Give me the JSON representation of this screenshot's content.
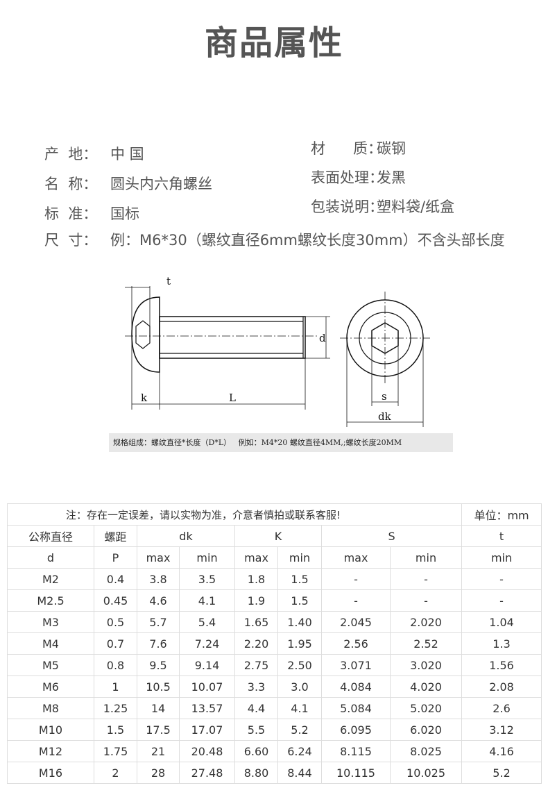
{
  "header": {
    "title": "商品属性"
  },
  "attributes": {
    "left": [
      {
        "label": "产  地：",
        "value": "中 国"
      },
      {
        "label": "名  称：",
        "value": "圆头内六角螺丝"
      },
      {
        "label": "标  准：",
        "value": "国标"
      }
    ],
    "right": [
      {
        "label": "材      质：",
        "value": "碳钢"
      },
      {
        "label": "表面处理：",
        "value": "发黑"
      },
      {
        "label": "包装说明：",
        "value": "塑料袋/纸盒"
      }
    ],
    "size": {
      "label": "尺  寸：",
      "value": "例：M6*30（螺纹直径6mm螺纹长度30mm）不含头部长度"
    }
  },
  "diagram": {
    "labels": {
      "t": "t",
      "d": "d",
      "k": "k",
      "L": "L",
      "s": "s",
      "dk": "dk"
    },
    "caption": "规格组成：螺纹直径*长度（D*L）   例如：M4*20 螺纹直径4MM,;螺纹长度20MM"
  },
  "table": {
    "note": "注：存在一定误差，请以实物为准，介意者慎拍或联系客服!",
    "unit": "单位：mm",
    "header_top": [
      "公称直径",
      "螺距",
      "dk",
      "K",
      "S",
      "t"
    ],
    "header_sub": [
      "d",
      "P",
      "max",
      "min",
      "max",
      "min",
      "max",
      "min",
      "min"
    ],
    "rows": [
      [
        "M2",
        "0.4",
        "3.8",
        "3.5",
        "1.8",
        "1.5",
        "-",
        "-",
        "-"
      ],
      [
        "M2.5",
        "0.45",
        "4.6",
        "4.1",
        "1.9",
        "1.5",
        "-",
        "-",
        "-"
      ],
      [
        "M3",
        "0.5",
        "5.7",
        "5.4",
        "1.65",
        "1.40",
        "2.045",
        "2.020",
        "1.04"
      ],
      [
        "M4",
        "0.7",
        "7.6",
        "7.24",
        "2.20",
        "1.95",
        "2.56",
        "2.52",
        "1.3"
      ],
      [
        "M5",
        "0.8",
        "9.5",
        "9.14",
        "2.75",
        "2.50",
        "3.071",
        "3.020",
        "1.56"
      ],
      [
        "M6",
        "1",
        "10.5",
        "10.07",
        "3.3",
        "3.0",
        "4.084",
        "4.020",
        "2.08"
      ],
      [
        "M8",
        "1.25",
        "14",
        "13.57",
        "4.4",
        "4.1",
        "5.084",
        "5.020",
        "2.6"
      ],
      [
        "M10",
        "1.5",
        "17.5",
        "17.07",
        "5.5",
        "5.2",
        "6.095",
        "6.020",
        "3.12"
      ],
      [
        "M12",
        "1.75",
        "21",
        "20.48",
        "6.60",
        "6.24",
        "8.115",
        "8.025",
        "4.16"
      ],
      [
        "M16",
        "2",
        "28",
        "27.48",
        "8.80",
        "8.44",
        "10.115",
        "10.025",
        "5.2"
      ]
    ]
  }
}
